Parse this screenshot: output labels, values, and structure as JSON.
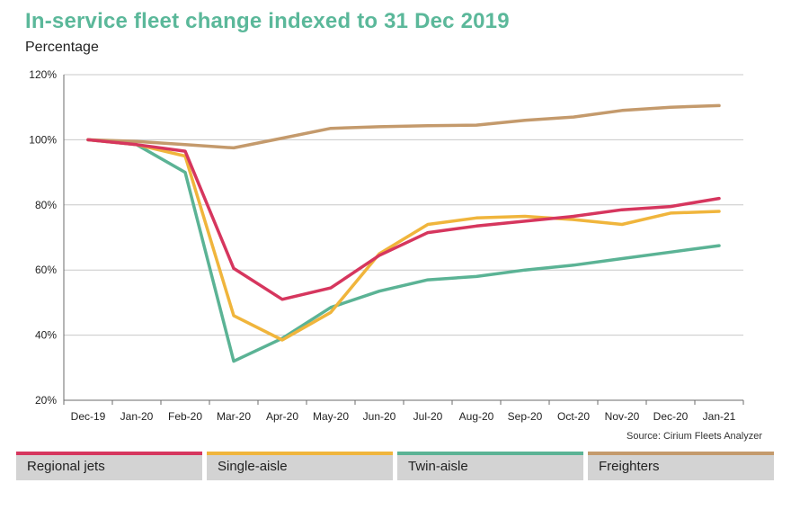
{
  "title": "In-service fleet change indexed to 31 Dec 2019",
  "subtitle": "Percentage",
  "source": "Source: Cirium Fleets Analyzer",
  "colors": {
    "title": "#5bb89a",
    "regional_jets": "#d6365e",
    "single_aisle": "#f0b53c",
    "twin_aisle": "#5bb395",
    "freighters": "#c49a6c",
    "grid": "#c8c8c8",
    "axis": "#6b6b6b"
  },
  "chart_data": {
    "type": "line",
    "title": "In-service fleet change indexed to 31 Dec 2019",
    "ylabel": "Percentage",
    "xlabel": "",
    "categories": [
      "Dec-19",
      "Jan-20",
      "Feb-20",
      "Mar-20",
      "Apr-20",
      "May-20",
      "Jun-20",
      "Jul-20",
      "Aug-20",
      "Sep-20",
      "Oct-20",
      "Nov-20",
      "Dec-20",
      "Jan-21"
    ],
    "y_ticks": [
      "20%",
      "40%",
      "60%",
      "80%",
      "100%",
      "120%"
    ],
    "y_tick_values": [
      20,
      40,
      60,
      80,
      100,
      120
    ],
    "ylim": [
      20,
      120
    ],
    "grid": true,
    "legend_position": "bottom",
    "series": [
      {
        "name": "Regional jets",
        "color_key": "regional_jets",
        "values": [
          100,
          98.5,
          96.5,
          60.5,
          51,
          54.5,
          64.5,
          71.5,
          73.5,
          75,
          76.5,
          78.5,
          79.5,
          82
        ]
      },
      {
        "name": "Single-aisle",
        "color_key": "single_aisle",
        "values": [
          100,
          98.5,
          95,
          46,
          38.5,
          47,
          65,
          74,
          76,
          76.5,
          75.5,
          74,
          77.5,
          78
        ]
      },
      {
        "name": "Twin-aisle",
        "color_key": "twin_aisle",
        "values": [
          100,
          98.5,
          90,
          32,
          39,
          48.5,
          53.5,
          57,
          58,
          60,
          61.5,
          63.5,
          65.5,
          67.5
        ]
      },
      {
        "name": "Freighters",
        "color_key": "freighters",
        "values": [
          100,
          99.5,
          98.5,
          97.5,
          100.5,
          103.5,
          104,
          104.3,
          104.5,
          106,
          107,
          109,
          110,
          110.5
        ]
      }
    ]
  },
  "legend": [
    {
      "label": "Regional jets",
      "color_key": "regional_jets"
    },
    {
      "label": "Single-aisle",
      "color_key": "single_aisle"
    },
    {
      "label": "Twin-aisle",
      "color_key": "twin_aisle"
    },
    {
      "label": "Freighters",
      "color_key": "freighters"
    }
  ]
}
